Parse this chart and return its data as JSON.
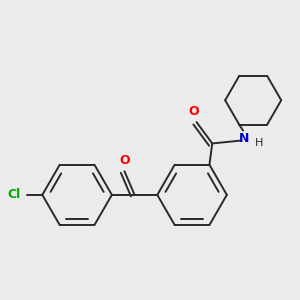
{
  "background_color": "#ebebeb",
  "bond_color": "#2a2a2a",
  "atom_colors": {
    "O": "#ff0000",
    "N": "#0000cc",
    "Cl": "#00aa00",
    "C": "#2a2a2a",
    "H": "#2a2a2a"
  },
  "lw": 1.4,
  "lw_double": 1.4
}
